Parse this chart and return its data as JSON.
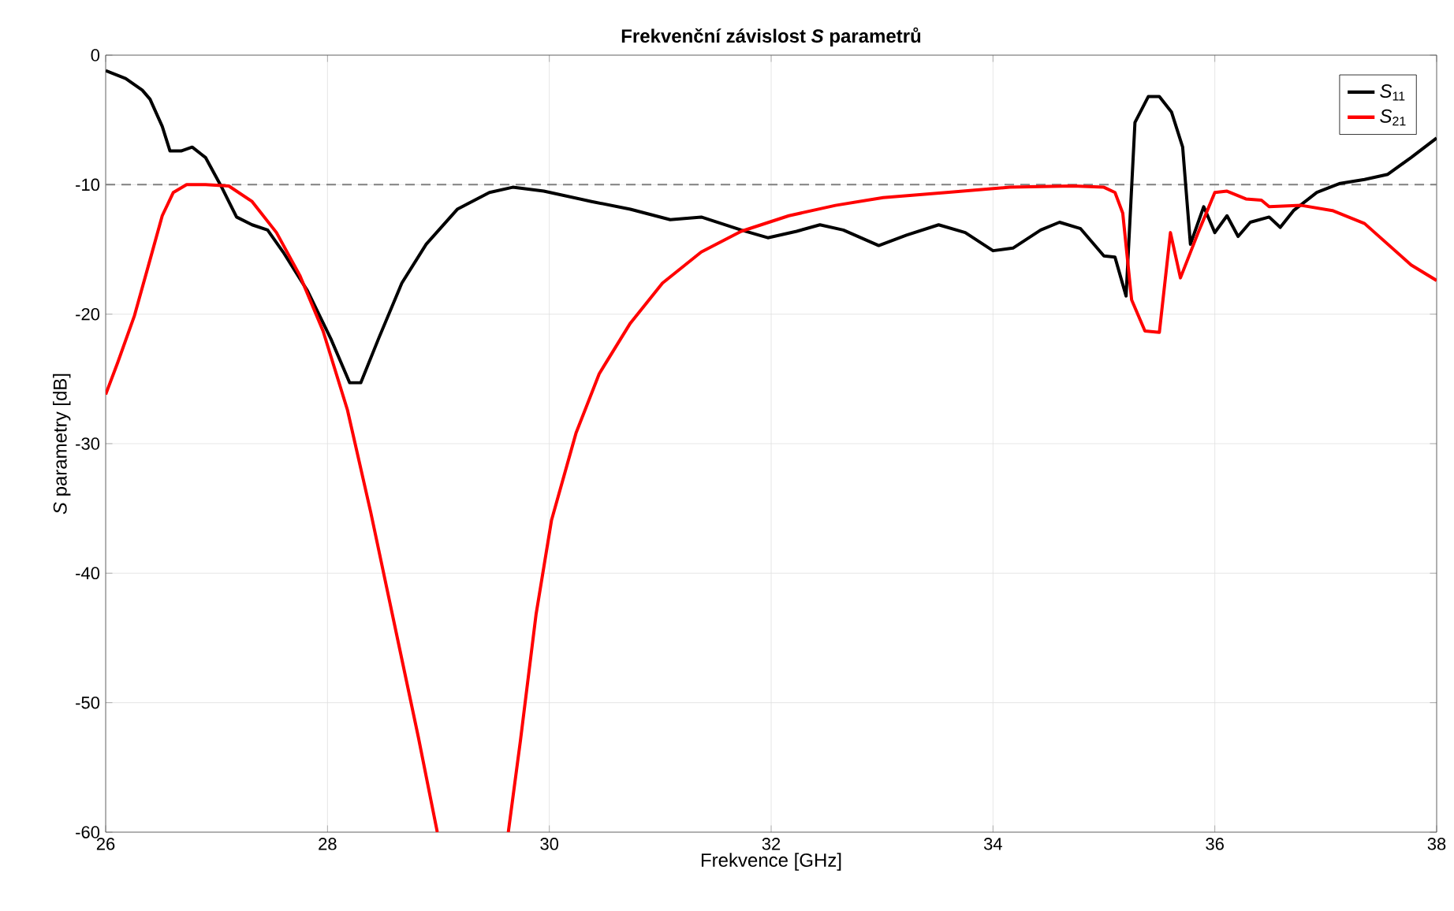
{
  "chart_data": {
    "type": "line",
    "title": "Frekvenční závislost *S* parametrů",
    "xlabel": "Frekvence [GHz]",
    "ylabel": "*S* parametry [dB]",
    "xlim": [
      26,
      38
    ],
    "ylim": [
      -60,
      0
    ],
    "xticks": [
      26,
      28,
      30,
      32,
      34,
      36,
      38
    ],
    "yticks": [
      -60,
      -50,
      -40,
      -30,
      -20,
      -10,
      0
    ],
    "grid": true,
    "legend": "top right",
    "line_style": "solid",
    "marker": "none",
    "ref_lines": [
      {
        "axis": "y",
        "value": -10,
        "color": "#808080",
        "line_style": "dashed"
      }
    ],
    "series": [
      {
        "name": "*S*$_{11}$",
        "color": "#000000",
        "x": [
          26,
          26.18,
          26.33,
          26.4,
          26.51,
          26.58,
          26.68,
          26.78,
          26.9,
          27.04,
          27.18,
          27.32,
          27.46,
          27.6,
          27.82,
          28.03,
          28.2,
          28.3,
          28.46,
          28.67,
          28.89,
          29.17,
          29.46,
          29.67,
          29.95,
          30.38,
          30.73,
          31.09,
          31.37,
          31.73,
          31.97,
          32.23,
          32.44,
          32.65,
          32.97,
          33.22,
          33.51,
          33.75,
          34.0,
          34.18,
          34.43,
          34.6,
          34.79,
          35.0,
          35.1,
          35.2,
          35.28,
          35.4,
          35.5,
          35.61,
          35.71,
          35.78,
          35.9,
          36.0,
          36.11,
          36.21,
          36.32,
          36.49,
          36.59,
          36.71,
          36.92,
          37.13,
          37.35,
          37.56,
          37.77,
          38.0
        ],
        "values": [
          -1.2,
          -1.8,
          -2.7,
          -3.4,
          -5.5,
          -7.4,
          -7.4,
          -7.1,
          -7.9,
          -10.1,
          -12.5,
          -13.1,
          -13.5,
          -15.2,
          -18.2,
          -21.9,
          -25.3,
          -25.3,
          -21.9,
          -17.6,
          -14.6,
          -11.9,
          -10.6,
          -10.2,
          -10.5,
          -11.3,
          -11.9,
          -12.7,
          -12.5,
          -13.5,
          -14.1,
          -13.6,
          -13.1,
          -13.5,
          -14.7,
          -13.9,
          -13.1,
          -13.7,
          -15.1,
          -14.9,
          -13.5,
          -12.9,
          -13.4,
          -15.5,
          -15.6,
          -18.6,
          -5.2,
          -3.2,
          -3.2,
          -4.4,
          -7.1,
          -14.6,
          -11.7,
          -13.7,
          -12.4,
          -14.0,
          -12.9,
          -12.5,
          -13.3,
          -12.0,
          -10.6,
          -9.9,
          -9.6,
          -9.2,
          -7.9,
          -6.4
        ]
      },
      {
        "name": "*S*$_{21}$",
        "color": "#ff0000",
        "x": [
          26,
          26.11,
          26.26,
          26.4,
          26.51,
          26.61,
          26.73,
          26.9,
          27.11,
          27.32,
          27.54,
          27.75,
          27.96,
          28.18,
          28.39,
          28.6,
          28.82,
          28.99,
          29.3,
          29.63,
          29.74,
          29.88,
          30.02,
          30.24,
          30.45,
          30.73,
          31.02,
          31.37,
          31.73,
          32.16,
          32.58,
          33.01,
          33.58,
          34.15,
          34.72,
          35.0,
          35.1,
          35.17,
          35.25,
          35.37,
          35.5,
          35.6,
          35.69,
          35.85,
          36.0,
          36.11,
          36.28,
          36.42,
          36.49,
          36.78,
          37.06,
          37.35,
          37.56,
          37.77,
          38.0
        ],
        "values": [
          -26.2,
          -23.7,
          -20.1,
          -15.8,
          -12.4,
          -10.6,
          -10.0,
          -10.0,
          -10.1,
          -11.3,
          -13.7,
          -17.0,
          -21.3,
          -27.4,
          -35.3,
          -43.8,
          -52.7,
          -60,
          null,
          -60,
          -52.9,
          -43.2,
          -35.9,
          -29.2,
          -24.6,
          -20.7,
          -17.6,
          -15.2,
          -13.6,
          -12.4,
          -11.6,
          -11.0,
          -10.6,
          -10.2,
          -10.1,
          -10.2,
          -10.6,
          -12.2,
          -18.9,
          -21.3,
          -21.4,
          -13.7,
          -17.2,
          -13.7,
          -10.6,
          -10.5,
          -11.1,
          -11.2,
          -11.7,
          -11.6,
          -12.0,
          -13.0,
          -14.6,
          -16.2,
          -17.4
        ]
      }
    ]
  }
}
